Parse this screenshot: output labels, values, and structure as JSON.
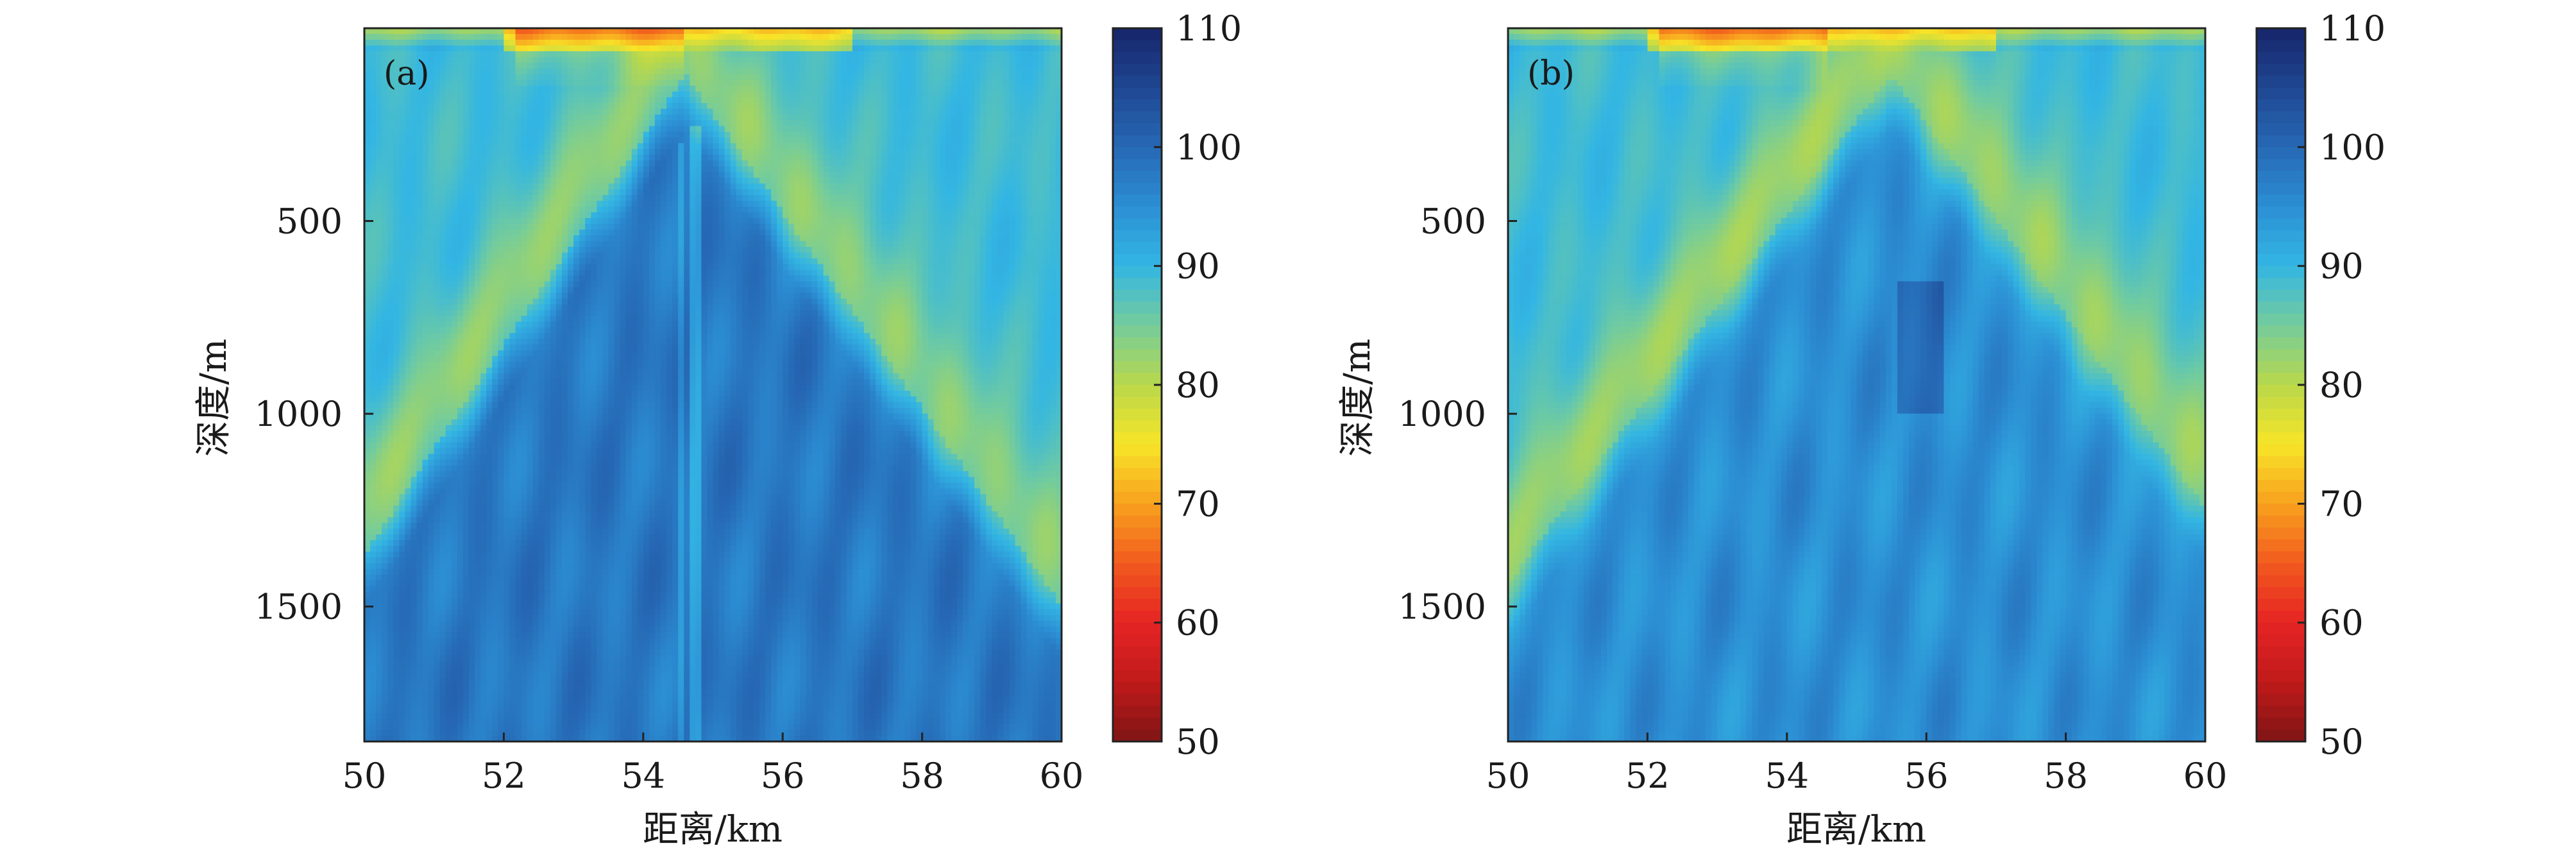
{
  "chart_data": [
    {
      "type": "heatmap",
      "panel_label": "(a)",
      "xlabel": "距离/km",
      "ylabel": "深度/m",
      "xlim": [
        50,
        60
      ],
      "ylim": [
        0,
        1850
      ],
      "y_reversed": true,
      "xticks": [
        50,
        52,
        54,
        56,
        58,
        60
      ],
      "yticks": [
        500,
        1000,
        1500
      ],
      "colorbar": {
        "min": 50,
        "max": 110,
        "ticks": [
          110,
          100,
          90,
          80,
          70,
          60,
          50
        ]
      },
      "field_description_values": {
        "apex_distance_km": 54.6,
        "surface_value": 72,
        "dominant_deep_value": 98,
        "beam_value": 83
      }
    },
    {
      "type": "heatmap",
      "panel_label": "(b)",
      "xlabel": "距离/km",
      "ylabel": "深度/m",
      "xlim": [
        50,
        60
      ],
      "ylim": [
        0,
        1850
      ],
      "y_reversed": true,
      "xticks": [
        50,
        52,
        54,
        56,
        58,
        60
      ],
      "yticks": [
        500,
        1000,
        1500
      ],
      "colorbar": {
        "min": 50,
        "max": 110,
        "ticks": [
          110,
          100,
          90,
          80,
          70,
          60,
          50
        ]
      },
      "field_description_values": {
        "apex_distance_km": 55.5,
        "surface_value": 72,
        "dominant_deep_value": 95,
        "beam_value": 82
      }
    }
  ],
  "colormap": {
    "stops": [
      {
        "v": 50,
        "c": "#7f1416"
      },
      {
        "v": 55,
        "c": "#c01a1a"
      },
      {
        "v": 60,
        "c": "#e62424"
      },
      {
        "v": 65,
        "c": "#f25a1e"
      },
      {
        "v": 70,
        "c": "#f8a11e"
      },
      {
        "v": 75,
        "c": "#f7e528"
      },
      {
        "v": 80,
        "c": "#b9d84a"
      },
      {
        "v": 85,
        "c": "#74cc9c"
      },
      {
        "v": 90,
        "c": "#33b6e3"
      },
      {
        "v": 95,
        "c": "#2c8fd4"
      },
      {
        "v": 100,
        "c": "#2668b4"
      },
      {
        "v": 105,
        "c": "#1f4792"
      },
      {
        "v": 110,
        "c": "#16246a"
      }
    ]
  }
}
